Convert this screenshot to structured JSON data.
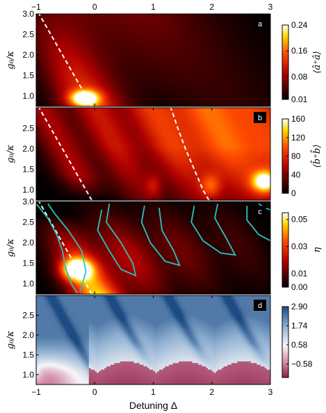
{
  "chart_data": [
    {
      "type": "heatmap",
      "panel": "a",
      "x_range": [
        -1,
        3
      ],
      "y_range": [
        0.75,
        3.0
      ],
      "x_ticks": [
        "−1",
        "0",
        "1",
        "2",
        "3"
      ],
      "y_ticks": [
        1.0,
        1.5,
        2.0,
        2.5,
        3.0
      ],
      "y_tick_labels": [
        "1.0",
        "1.5",
        "2.0",
        "2.5",
        "3.0"
      ],
      "ylabel": "g₀/κ",
      "colorbar": {
        "label": "⟨â⁺â⟩",
        "ticks": [
          "0.24",
          "0.16",
          "0.08",
          "0.01"
        ],
        "values": [
          0.24,
          0.16,
          0.08,
          0.01
        ],
        "range": [
          0.01,
          0.24
        ],
        "colormap": "hot"
      },
      "dashed_curves": [
        {
          "points": [
            [
              -0.05,
              0.75
            ],
            [
              -0.15,
              1.0
            ],
            [
              -0.35,
              1.5
            ],
            [
              -0.55,
              2.0
            ],
            [
              -0.75,
              2.5
            ],
            [
              -0.95,
              3.0
            ]
          ]
        }
      ],
      "peaks": [
        {
          "x": -0.15,
          "y": 0.95,
          "value": 0.24
        }
      ]
    },
    {
      "type": "heatmap",
      "panel": "b",
      "x_range": [
        -1,
        3
      ],
      "y_range": [
        0.75,
        3.0
      ],
      "y_ticks": [
        1.0,
        1.5,
        2.0,
        2.5
      ],
      "y_tick_labels": [
        "1.0",
        "1.5",
        "2.0",
        "2.5"
      ],
      "ylabel": "g₀/κ",
      "colorbar": {
        "label": "⟨b̂⁺b̂⟩",
        "ticks": [
          "160",
          "120",
          "80",
          "40",
          "0"
        ],
        "values": [
          160,
          120,
          80,
          40,
          0
        ],
        "range": [
          0,
          160
        ],
        "colormap": "hot"
      },
      "dashed_curves": [
        {
          "points": [
            [
              -0.05,
              0.75
            ],
            [
              -0.15,
              1.0
            ],
            [
              -0.35,
              1.5
            ],
            [
              -0.55,
              2.0
            ],
            [
              -0.75,
              2.5
            ],
            [
              -0.95,
              3.0
            ]
          ]
        },
        {
          "points": [
            [
              1.95,
              0.75
            ],
            [
              1.85,
              1.0
            ],
            [
              1.7,
              1.5
            ],
            [
              1.55,
              2.0
            ],
            [
              1.42,
              2.5
            ],
            [
              1.3,
              3.0
            ]
          ]
        }
      ],
      "peaks": [
        {
          "x": 2.9,
          "y": 1.2,
          "value": 160
        }
      ]
    },
    {
      "type": "heatmap",
      "panel": "c",
      "x_range": [
        -1,
        3
      ],
      "y_range": [
        0.75,
        3.0
      ],
      "y_ticks": [
        1.0,
        1.5,
        2.0,
        2.5,
        3.0
      ],
      "y_tick_labels": [
        "1.0",
        "1.5",
        "2.0",
        "2.5",
        "3.0"
      ],
      "ylabel": "g₀/κ",
      "colorbar": {
        "label": "η",
        "ticks": [
          "0.05",
          "0.03",
          "0.01",
          "0.00"
        ],
        "values": [
          0.05,
          0.03,
          0.01,
          0.0
        ],
        "range": [
          0.0,
          0.055
        ],
        "colormap": "hot"
      },
      "dashed_curves": [
        {
          "points": [
            [
              -0.05,
              0.75
            ],
            [
              -0.15,
              1.0
            ],
            [
              -0.35,
              1.5
            ],
            [
              -0.55,
              2.0
            ],
            [
              -0.75,
              2.5
            ],
            [
              -0.95,
              3.0
            ]
          ]
        }
      ],
      "contour_color": "#27c4c0",
      "peaks": [
        {
          "x": -0.3,
          "y": 1.35,
          "value": 0.055
        }
      ]
    },
    {
      "type": "heatmap",
      "panel": "d",
      "x_range": [
        -1,
        3
      ],
      "y_range": [
        0.75,
        3.0
      ],
      "x_ticks": [
        "−1",
        "0",
        "1",
        "2",
        "3"
      ],
      "y_ticks": [
        1.0,
        1.5,
        2.0,
        2.5
      ],
      "y_tick_labels": [
        "1.0",
        "1.5",
        "2.0",
        "2.5"
      ],
      "ylabel": "g₀/κ",
      "xlabel": "Detuning Δ",
      "colorbar": {
        "label": "",
        "ticks": [
          "2.90",
          "1.74",
          "0.58",
          "−0.58"
        ],
        "values": [
          2.9,
          1.74,
          0.58,
          -0.58
        ],
        "range": [
          -1.4,
          2.9
        ],
        "colormap": "diverging-blue-red"
      }
    }
  ],
  "colors": {
    "contour": "#27c4c0",
    "badge_bg": "#000000",
    "dashed": "#ffffff"
  }
}
